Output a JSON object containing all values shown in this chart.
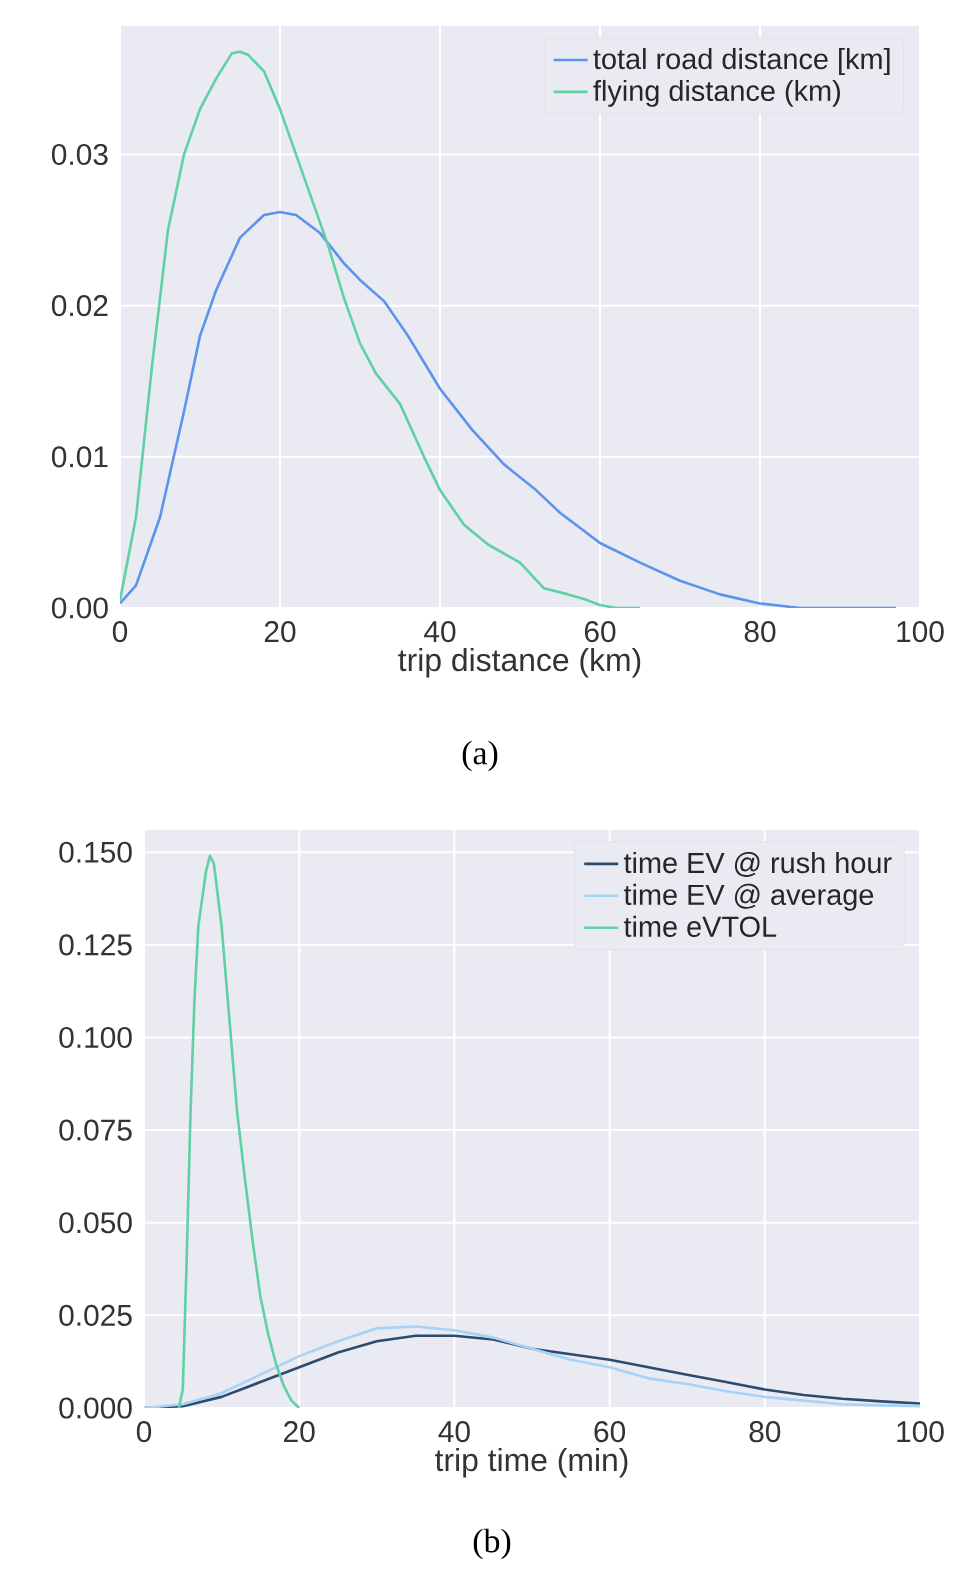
{
  "chart_data": [
    {
      "type": "line",
      "xlabel": "trip distance (km)",
      "annotations": [
        "(a)"
      ],
      "xlim": [
        0,
        100
      ],
      "ylim": [
        0,
        0.0385
      ],
      "xticks": [
        0,
        20,
        40,
        60,
        80,
        100
      ],
      "yticks": [
        {
          "value": 0,
          "label": "0.00"
        },
        {
          "value": 0.01,
          "label": "0.01"
        },
        {
          "value": 0.02,
          "label": "0.02"
        },
        {
          "value": 0.03,
          "label": "0.03"
        }
      ],
      "grid": true,
      "legend": "top right",
      "marker": "none",
      "line_style": "solid",
      "series": [
        {
          "name": "total road distance [km]",
          "color": "#5b93ee",
          "x": [
            0,
            2,
            5,
            8,
            10,
            12,
            15,
            18,
            20,
            22,
            25,
            28,
            30,
            33,
            36,
            40,
            44,
            48,
            52,
            55,
            60,
            65,
            70,
            75,
            80,
            85,
            90,
            97
          ],
          "values": [
            0.0003,
            0.0015,
            0.006,
            0.013,
            0.018,
            0.021,
            0.0245,
            0.026,
            0.0262,
            0.026,
            0.0248,
            0.0228,
            0.0217,
            0.0203,
            0.018,
            0.0145,
            0.0118,
            0.0095,
            0.0078,
            0.0063,
            0.0043,
            0.003,
            0.0018,
            0.0009,
            0.0003,
            0.0,
            0.0,
            0.0
          ]
        },
        {
          "name": "flying distance (km)",
          "color": "#5fd1a4",
          "x": [
            0,
            2,
            4,
            6,
            8,
            10,
            12,
            14,
            15,
            16,
            18,
            20,
            22,
            24,
            26,
            28,
            30,
            32,
            35,
            38,
            40,
            43,
            46,
            50,
            53,
            56,
            58,
            60,
            62,
            65
          ],
          "values": [
            0.0005,
            0.006,
            0.016,
            0.025,
            0.03,
            0.033,
            0.035,
            0.0367,
            0.0368,
            0.0366,
            0.0355,
            0.033,
            0.03,
            0.027,
            0.024,
            0.0205,
            0.0175,
            0.0155,
            0.0135,
            0.01,
            0.0078,
            0.0055,
            0.0042,
            0.003,
            0.0013,
            0.0009,
            0.0006,
            0.0002,
            0.0,
            0.0
          ]
        }
      ]
    },
    {
      "type": "line",
      "xlabel": "trip time (min)",
      "annotations": [
        "(b)"
      ],
      "xlim": [
        0,
        100
      ],
      "ylim": [
        0,
        0.156
      ],
      "xticks": [
        0,
        20,
        40,
        60,
        80,
        100
      ],
      "yticks": [
        {
          "value": 0,
          "label": "0.000"
        },
        {
          "value": 0.025,
          "label": "0.025"
        },
        {
          "value": 0.05,
          "label": "0.050"
        },
        {
          "value": 0.075,
          "label": "0.075"
        },
        {
          "value": 0.1,
          "label": "0.100"
        },
        {
          "value": 0.125,
          "label": "0.125"
        },
        {
          "value": 0.15,
          "label": "0.150"
        }
      ],
      "grid": true,
      "legend": "top right",
      "marker": "none",
      "line_style": "solid",
      "series": [
        {
          "name": "time EV @ rush hour",
          "color": "#2d4b6e",
          "x": [
            0,
            5,
            10,
            15,
            20,
            25,
            30,
            35,
            40,
            45,
            50,
            55,
            60,
            65,
            70,
            75,
            80,
            85,
            90,
            95,
            100
          ],
          "values": [
            0,
            0.0005,
            0.003,
            0.007,
            0.011,
            0.015,
            0.018,
            0.0195,
            0.0195,
            0.0185,
            0.016,
            0.0145,
            0.013,
            0.011,
            0.009,
            0.007,
            0.005,
            0.0035,
            0.0025,
            0.0018,
            0.0012
          ]
        },
        {
          "name": "time EV @ average",
          "color": "#a6d3f7",
          "x": [
            0,
            5,
            10,
            15,
            20,
            25,
            30,
            35,
            40,
            45,
            50,
            55,
            60,
            65,
            70,
            75,
            80,
            85,
            90,
            95,
            100
          ],
          "values": [
            0,
            0.001,
            0.004,
            0.009,
            0.014,
            0.018,
            0.0215,
            0.022,
            0.021,
            0.019,
            0.016,
            0.013,
            0.011,
            0.008,
            0.0065,
            0.0045,
            0.003,
            0.002,
            0.001,
            0.0007,
            0.0005
          ]
        },
        {
          "name": "time eVTOL",
          "color": "#5fd1a4",
          "x": [
            4.5,
            5,
            5.5,
            6,
            6.5,
            7,
            8,
            8.5,
            9,
            10,
            11,
            12,
            13,
            14,
            15,
            16,
            17,
            18,
            19,
            20
          ],
          "values": [
            0,
            0.005,
            0.04,
            0.08,
            0.11,
            0.13,
            0.145,
            0.149,
            0.147,
            0.13,
            0.105,
            0.08,
            0.062,
            0.045,
            0.03,
            0.02,
            0.012,
            0.006,
            0.002,
            0.0
          ]
        }
      ]
    }
  ]
}
